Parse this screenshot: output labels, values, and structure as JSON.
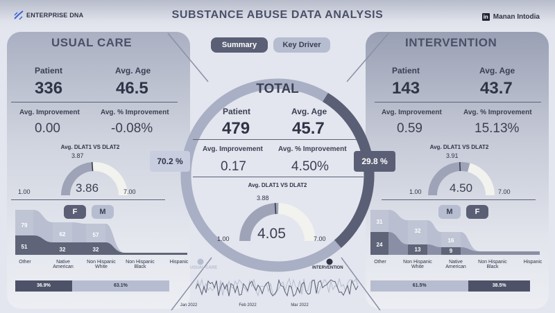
{
  "header": {
    "brand": "ENTERPRISE DNA",
    "title": "SUBSTANCE ABUSE DATA ANALYSIS",
    "author": "Manan Intodia",
    "linkedin_glyph": "in"
  },
  "nav": {
    "summary": "Summary",
    "key_driver": "Key Driver"
  },
  "usual_care": {
    "title": "USUAL CARE",
    "patient_label": "Patient",
    "patient": "336",
    "age_label": "Avg. Age",
    "age": "46.5",
    "imp_label": "Avg. Improvement",
    "imp": "0.00",
    "pct_label": "Avg. % Improvement",
    "pct": "-0.08%",
    "gauge_label": "Avg. DLAT1 VS DLAT2",
    "gauge": {
      "value": "3.86",
      "target": "3.87",
      "min": "1.00",
      "max": "7.00",
      "fraction": 0.476
    },
    "chips": [
      "F",
      "M"
    ],
    "ribbon_ticks": [
      "Other",
      "Native American",
      "Non Hispanic White",
      "Non Hispanic Black",
      "Hispanic"
    ],
    "ribbon_labels": {
      "top": [
        "79",
        "62",
        "57"
      ],
      "bottom": [
        "51",
        "32",
        "32"
      ]
    },
    "split": {
      "left": "36.9%",
      "right": "63.1%",
      "left_fraction": 0.369
    }
  },
  "total": {
    "title": "TOTAL",
    "patient_label": "Patient",
    "patient": "479",
    "age_label": "Avg. Age",
    "age": "45.7",
    "imp_label": "Avg. Improvement",
    "imp": "0.17",
    "pct_label": "Avg. % Improvement",
    "pct": "4.50%",
    "gauge_label": "Avg. DLAT1 VS DLAT2",
    "gauge": {
      "value": "4.05",
      "target": "3.88",
      "min": "1.00",
      "max": "7.00",
      "fraction": 0.508
    },
    "left_pct": "70.2 %",
    "right_pct": "29.8 %",
    "ring_fraction_right": 0.298
  },
  "intervention": {
    "title": "INTERVENTION",
    "patient_label": "Patient",
    "patient": "143",
    "age_label": "Avg. Age",
    "age": "43.7",
    "imp_label": "Avg. Improvement",
    "imp": "0.59",
    "pct_label": "Avg. % Improvement",
    "pct": "15.13%",
    "gauge_label": "Avg. DLAT1 VS DLAT2",
    "gauge": {
      "value": "4.50",
      "target": "3.91",
      "min": "1.00",
      "max": "7.00",
      "fraction": 0.583
    },
    "chips": [
      "M",
      "F"
    ],
    "ribbon_ticks": [
      "Other",
      "Non Hispanic White",
      "Native American",
      "Non Hispanic Black",
      "Hispanic"
    ],
    "ribbon_labels": {
      "top": [
        "31",
        "32",
        "16"
      ],
      "bottom": [
        "24",
        "13",
        "9"
      ]
    },
    "split": {
      "left": "61.5%",
      "right": "38.5%",
      "left_fraction": 0.615
    }
  },
  "timeline": {
    "legend_left": "USUAL CARE",
    "legend_right": "INTERVENTION",
    "x_ticks": [
      "Jan 2022",
      "Feb 2022",
      "Mar 2022"
    ]
  },
  "colors": {
    "dark": "#5a5f75",
    "mid": "#9ea3b8",
    "light": "#b7bdd0",
    "pale": "#f2f2ef",
    "text": "#2f3446"
  }
}
